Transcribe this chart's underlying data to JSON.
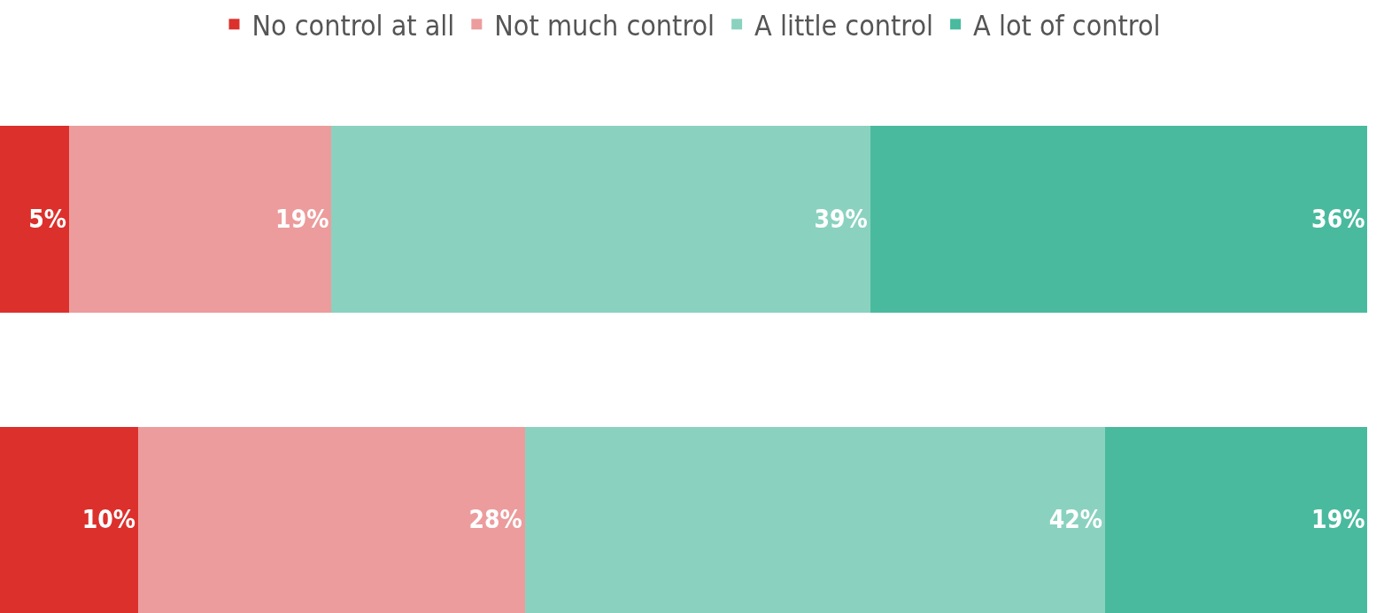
{
  "chart_data": {
    "type": "bar",
    "orientation": "horizontal",
    "stacked": true,
    "categories": [
      null,
      null
    ],
    "xlim": [
      0,
      100
    ],
    "legend": "top",
    "series": [
      {
        "name": "No control at all",
        "color": "#dc302c",
        "values": [
          5,
          10
        ],
        "value_labels": [
          "5%",
          "10%"
        ]
      },
      {
        "name": "Not much control",
        "color": "#ec9c9c",
        "values": [
          19,
          28
        ],
        "value_labels": [
          "19%",
          "28%"
        ]
      },
      {
        "name": "A little control",
        "color": "#8ad2bf",
        "values": [
          39,
          42
        ],
        "value_labels": [
          "39%",
          "42%"
        ]
      },
      {
        "name": "A lot of control",
        "color": "#4aba9f",
        "values": [
          36,
          19
        ],
        "value_labels": [
          "36%",
          "19%"
        ]
      }
    ]
  }
}
